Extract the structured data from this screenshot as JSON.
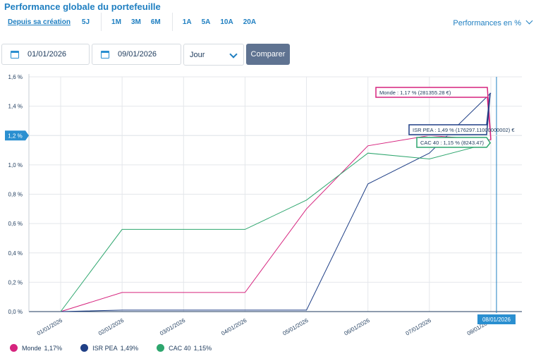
{
  "header": {
    "title": "Performance globale du portefeuille",
    "perf_mode": "Performances en %"
  },
  "periods": [
    "Depuis sa création",
    "5J",
    "1M",
    "3M",
    "6M",
    "1A",
    "5A",
    "10A",
    "20A"
  ],
  "active_period": "Depuis sa création",
  "controls": {
    "start_date": "01/01/2026",
    "end_date": "09/01/2026",
    "granularity": "Jour",
    "compare_label": "Comparer"
  },
  "colors": {
    "accent": "#1f7fc1",
    "monde": "#d6247e",
    "isr": "#1f3f86",
    "cac": "#2ea66e"
  },
  "chart_data": {
    "type": "line",
    "x": [
      "01/01/2026",
      "02/01/2026",
      "03/01/2026",
      "04/01/2026",
      "05/01/2026",
      "06/01/2026",
      "07/01/2026",
      "08/01/2026"
    ],
    "ylim": [
      0,
      1.6
    ],
    "yticks": [
      "0,0 %",
      "0,2 %",
      "0,4 %",
      "0,6 %",
      "0,8 %",
      "1,0 %",
      "1,2 %",
      "1,4 %",
      "1,6 %"
    ],
    "grid": true,
    "series": [
      {
        "name": "Monde",
        "color": "#d6247e",
        "values": [
          0,
          0.13,
          0.13,
          0.13,
          0.7,
          1.13,
          1.2,
          1.17
        ],
        "tooltip": "Monde : 1,17 % (281355.28 €)",
        "legend_value": "1,17%"
      },
      {
        "name": "ISR PEA",
        "color": "#1f3f86",
        "values": [
          0,
          0.01,
          0.01,
          0.01,
          0.01,
          0.87,
          1.08,
          1.49
        ],
        "tooltip": "ISR PEA : 1,49 % (176297.11000000002) €",
        "legend_value": "1,49%"
      },
      {
        "name": "CAC 40",
        "color": "#2ea66e",
        "values": [
          0,
          0.56,
          0.56,
          0.56,
          0.76,
          1.08,
          1.04,
          1.15
        ],
        "tooltip": "CAC 40 : 1,15 % (8243.47)",
        "legend_value": "1,15%"
      }
    ],
    "cursor_x_label": "08/01/2026",
    "cursor_y_label": "1,2 %"
  }
}
